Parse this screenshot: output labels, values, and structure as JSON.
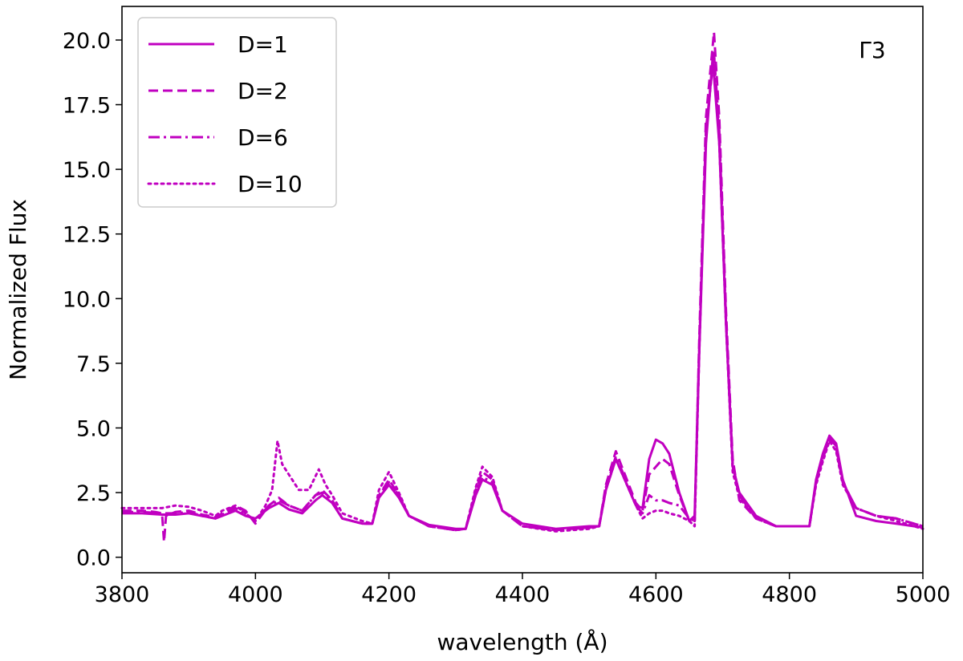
{
  "chart_data": {
    "type": "line",
    "title": "",
    "xlabel": "wavelength (Å)",
    "ylabel": "Normalized Flux",
    "annotation": "Γ3",
    "xlim": [
      3800,
      5000
    ],
    "ylim": [
      -0.6,
      21.3
    ],
    "xticks": [
      "3800",
      "4000",
      "4200",
      "4400",
      "4600",
      "4800",
      "5000"
    ],
    "yticks": [
      "0.0",
      "2.5",
      "5.0",
      "7.5",
      "10.0",
      "12.5",
      "15.0",
      "17.5",
      "20.0"
    ],
    "grid": false,
    "legend_position": "upper-left",
    "color": "#c000c0",
    "series": [
      {
        "name": "D=1",
        "style": "solid",
        "x": [
          3800,
          3830,
          3860,
          3880,
          3900,
          3920,
          3940,
          3950,
          3970,
          3985,
          4000,
          4020,
          4035,
          4050,
          4070,
          4090,
          4100,
          4115,
          4130,
          4160,
          4175,
          4185,
          4200,
          4215,
          4230,
          4260,
          4300,
          4315,
          4330,
          4340,
          4355,
          4370,
          4400,
          4450,
          4500,
          4515,
          4525,
          4540,
          4555,
          4570,
          4580,
          4590,
          4600,
          4610,
          4620,
          4635,
          4650,
          4658,
          4665,
          4675,
          4685,
          4695,
          4705,
          4715,
          4725,
          4750,
          4780,
          4800,
          4830,
          4840,
          4850,
          4860,
          4870,
          4880,
          4900,
          4930,
          4960,
          5000
        ],
        "y": [
          1.7,
          1.7,
          1.65,
          1.65,
          1.7,
          1.6,
          1.5,
          1.6,
          1.8,
          1.6,
          1.5,
          1.9,
          2.1,
          1.85,
          1.7,
          2.2,
          2.4,
          2.1,
          1.5,
          1.3,
          1.3,
          2.3,
          2.8,
          2.3,
          1.6,
          1.25,
          1.1,
          1.1,
          2.4,
          3.0,
          2.8,
          1.8,
          1.3,
          1.1,
          1.2,
          1.2,
          2.6,
          3.8,
          2.9,
          2.0,
          1.9,
          3.8,
          4.55,
          4.4,
          4.0,
          2.5,
          1.4,
          1.6,
          8.0,
          16.0,
          19.3,
          16.0,
          9.0,
          3.5,
          2.5,
          1.6,
          1.2,
          1.2,
          1.2,
          3.0,
          4.0,
          4.7,
          4.4,
          3.0,
          1.6,
          1.4,
          1.3,
          1.15
        ]
      },
      {
        "name": "D=2",
        "style": "dashed",
        "x": [
          3800,
          3830,
          3850,
          3860,
          3863,
          3866,
          3880,
          3900,
          3920,
          3940,
          3950,
          3970,
          3985,
          4000,
          4020,
          4035,
          4050,
          4070,
          4090,
          4100,
          4115,
          4130,
          4160,
          4175,
          4185,
          4200,
          4215,
          4230,
          4260,
          4300,
          4315,
          4330,
          4340,
          4355,
          4370,
          4400,
          4450,
          4500,
          4515,
          4525,
          4540,
          4555,
          4570,
          4580,
          4590,
          4600,
          4610,
          4620,
          4635,
          4650,
          4658,
          4665,
          4675,
          4687,
          4695,
          4705,
          4715,
          4725,
          4750,
          4780,
          4800,
          4830,
          4840,
          4850,
          4860,
          4870,
          4880,
          4900,
          4930,
          4960,
          5000
        ],
        "y": [
          1.8,
          1.8,
          1.75,
          1.7,
          0.6,
          1.6,
          1.75,
          1.8,
          1.65,
          1.55,
          1.7,
          2.0,
          1.8,
          1.3,
          2.0,
          2.3,
          2.0,
          1.8,
          2.4,
          2.6,
          2.2,
          1.5,
          1.3,
          1.3,
          2.4,
          3.0,
          2.4,
          1.6,
          1.2,
          1.05,
          1.1,
          2.6,
          3.3,
          3.0,
          1.8,
          1.2,
          1.05,
          1.15,
          1.2,
          2.8,
          4.1,
          3.1,
          2.1,
          1.8,
          3.2,
          3.5,
          3.8,
          3.6,
          2.4,
          1.4,
          1.4,
          8.5,
          17.0,
          20.3,
          17.0,
          9.5,
          3.8,
          2.2,
          1.5,
          1.2,
          1.2,
          1.2,
          2.9,
          3.8,
          4.6,
          4.2,
          2.9,
          1.9,
          1.6,
          1.5,
          1.2
        ]
      },
      {
        "name": "D=6",
        "style": "dashdot",
        "x": [
          3800,
          3830,
          3860,
          3880,
          3900,
          3920,
          3940,
          3950,
          3970,
          3985,
          4000,
          4020,
          4035,
          4050,
          4070,
          4090,
          4100,
          4115,
          4130,
          4160,
          4175,
          4185,
          4200,
          4215,
          4230,
          4260,
          4300,
          4315,
          4330,
          4340,
          4355,
          4370,
          4400,
          4450,
          4500,
          4515,
          4525,
          4540,
          4555,
          4570,
          4580,
          4590,
          4600,
          4610,
          4620,
          4635,
          4650,
          4658,
          4665,
          4675,
          4687,
          4695,
          4705,
          4715,
          4725,
          4750,
          4780,
          4800,
          4830,
          4840,
          4850,
          4860,
          4870,
          4880,
          4900,
          4930,
          4960,
          5000
        ],
        "y": [
          1.75,
          1.75,
          1.7,
          1.7,
          1.75,
          1.6,
          1.5,
          1.65,
          1.9,
          1.7,
          1.4,
          2.0,
          2.2,
          2.0,
          1.8,
          2.4,
          2.5,
          2.2,
          1.5,
          1.3,
          1.3,
          2.4,
          2.9,
          2.4,
          1.6,
          1.2,
          1.05,
          1.1,
          2.5,
          3.1,
          2.9,
          1.8,
          1.2,
          1.05,
          1.15,
          1.2,
          2.7,
          3.9,
          3.0,
          2.0,
          1.7,
          2.4,
          2.2,
          2.2,
          2.1,
          2.0,
          1.5,
          1.4,
          8.2,
          16.5,
          19.5,
          16.5,
          9.2,
          3.6,
          2.4,
          1.5,
          1.2,
          1.2,
          1.2,
          2.9,
          3.9,
          4.6,
          4.3,
          2.9,
          1.9,
          1.6,
          1.5,
          1.2
        ]
      },
      {
        "name": "D=10",
        "style": "dotted",
        "x": [
          3800,
          3830,
          3860,
          3880,
          3900,
          3920,
          3940,
          3950,
          3970,
          3985,
          4000,
          4015,
          4025,
          4033,
          4040,
          4050,
          4065,
          4080,
          4095,
          4105,
          4115,
          4130,
          4160,
          4175,
          4185,
          4200,
          4215,
          4230,
          4260,
          4300,
          4315,
          4330,
          4340,
          4355,
          4370,
          4400,
          4450,
          4500,
          4515,
          4525,
          4540,
          4555,
          4570,
          4580,
          4590,
          4600,
          4610,
          4620,
          4635,
          4650,
          4658,
          4665,
          4675,
          4687,
          4695,
          4705,
          4715,
          4725,
          4750,
          4780,
          4800,
          4830,
          4840,
          4850,
          4860,
          4870,
          4880,
          4900,
          4930,
          4960,
          5000
        ],
        "y": [
          1.9,
          1.9,
          1.9,
          2.0,
          1.95,
          1.8,
          1.6,
          1.8,
          2.0,
          1.7,
          1.4,
          2.0,
          2.6,
          4.5,
          3.6,
          3.2,
          2.6,
          2.6,
          3.4,
          2.8,
          2.4,
          1.7,
          1.4,
          1.3,
          2.6,
          3.3,
          2.5,
          1.6,
          1.2,
          1.05,
          1.1,
          2.7,
          3.5,
          3.1,
          1.8,
          1.2,
          1.0,
          1.1,
          1.2,
          2.6,
          3.8,
          2.9,
          2.0,
          1.5,
          1.7,
          1.8,
          1.8,
          1.7,
          1.6,
          1.4,
          1.2,
          8.0,
          16.5,
          19.5,
          16.0,
          9.0,
          3.3,
          2.3,
          1.5,
          1.2,
          1.2,
          1.2,
          2.8,
          3.7,
          4.5,
          4.1,
          2.8,
          1.9,
          1.6,
          1.4,
          1.1
        ]
      }
    ]
  }
}
